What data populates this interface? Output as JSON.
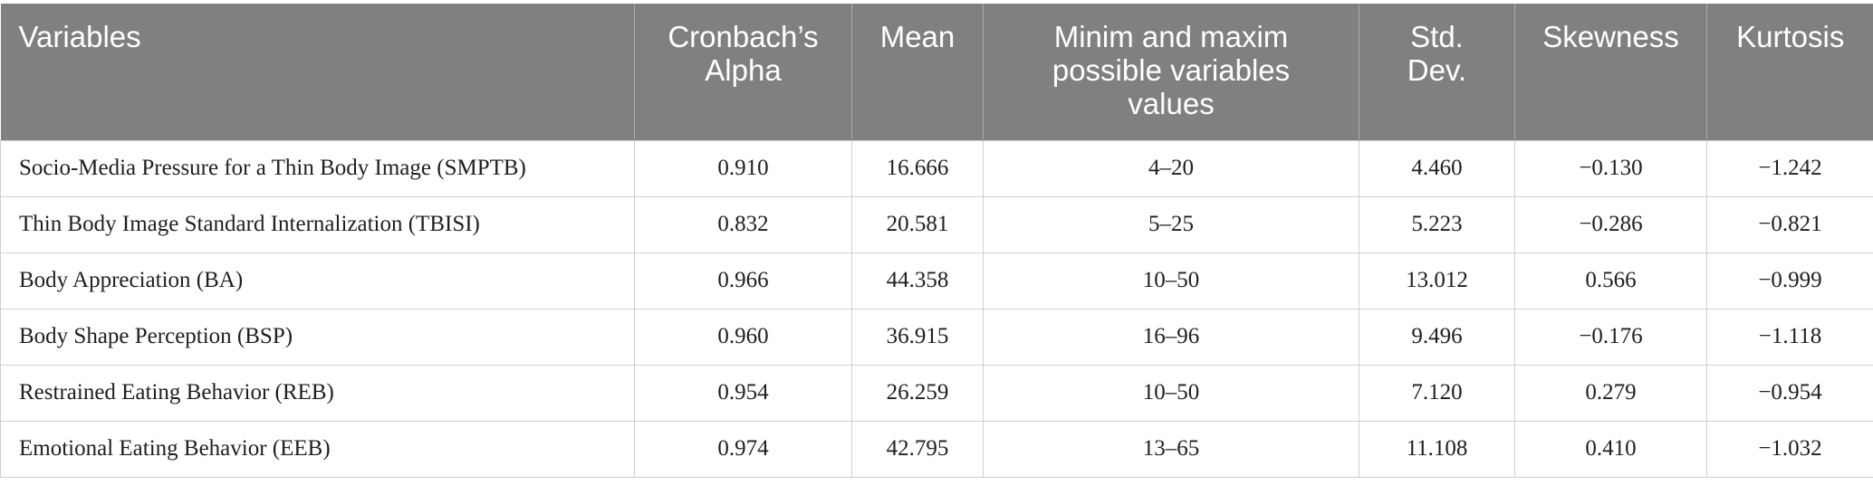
{
  "table": {
    "headers": [
      "Variables",
      "Cronbach’s\nAlpha",
      "Mean",
      "Minim and maxim\npossible variables\nvalues",
      "Std.\nDev.",
      "Skewness",
      "Kurtosis"
    ],
    "rows": [
      [
        "Socio-Media Pressure for a Thin Body Image (SMPTB)",
        "0.910",
        "16.666",
        "4–20",
        "4.460",
        "−0.130",
        "−1.242"
      ],
      [
        "Thin Body Image Standard Internalization (TBISI)",
        "0.832",
        "20.581",
        "5–25",
        "5.223",
        "−0.286",
        "−0.821"
      ],
      [
        "Body Appreciation (BA)",
        "0.966",
        "44.358",
        "10–50",
        "13.012",
        "0.566",
        "−0.999"
      ],
      [
        "Body Shape Perception (BSP)",
        "0.960",
        "36.915",
        "16–96",
        "9.496",
        "−0.176",
        "−1.118"
      ],
      [
        "Restrained Eating Behavior (REB)",
        "0.954",
        "26.259",
        "10–50",
        "7.120",
        "0.279",
        "−0.954"
      ],
      [
        "Emotional Eating Behavior (EEB)",
        "0.974",
        "42.795",
        "13–65",
        "11.108",
        "0.410",
        "−1.032"
      ]
    ]
  }
}
